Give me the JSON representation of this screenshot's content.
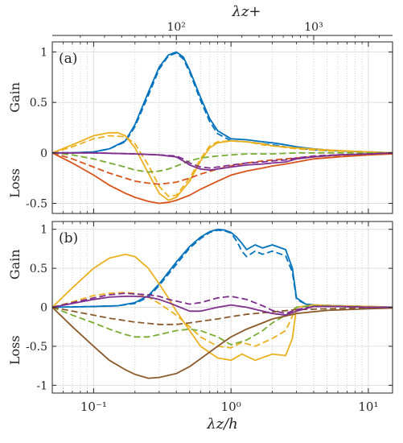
{
  "chart_data": [
    {
      "type": "line",
      "panel_label": "(a)",
      "xscale": "log",
      "xlim": [
        0.05,
        15
      ],
      "ylim": [
        -0.6,
        1.1
      ],
      "yticks": [
        -0.5,
        0,
        0.5,
        1
      ],
      "ytick_labels": [
        "-0.5",
        "0",
        "0.5",
        "1"
      ],
      "ylabel_top": "Gain",
      "ylabel_bottom": "Loss",
      "top_axis": {
        "label": "λz+",
        "tick_labels": [
          "10²",
          "10³"
        ],
        "tick_values_xunits": [
          0.4,
          4.0
        ]
      },
      "grid": true,
      "series": [
        {
          "color": "#0072BD",
          "style": "solid",
          "x": [
            0.05,
            0.07,
            0.1,
            0.13,
            0.17,
            0.2,
            0.25,
            0.3,
            0.35,
            0.4,
            0.45,
            0.5,
            0.6,
            0.7,
            0.8,
            1.0,
            1.3,
            1.7,
            2.0,
            2.5,
            3.0,
            4,
            6,
            10,
            15
          ],
          "y": [
            0,
            0,
            0.01,
            0.04,
            0.12,
            0.28,
            0.6,
            0.85,
            0.97,
            1.0,
            0.95,
            0.82,
            0.55,
            0.34,
            0.22,
            0.14,
            0.13,
            0.11,
            0.1,
            0.08,
            0.06,
            0.04,
            0.02,
            0.01,
            0.0
          ]
        },
        {
          "color": "#0072BD",
          "style": "dashed",
          "x": [
            0.05,
            0.07,
            0.1,
            0.13,
            0.17,
            0.2,
            0.25,
            0.3,
            0.35,
            0.4,
            0.45,
            0.5,
            0.6,
            0.7,
            0.8,
            1.0,
            1.3,
            1.7,
            2.0,
            2.5,
            3.0,
            4,
            6,
            10,
            15
          ],
          "y": [
            0,
            0,
            0.01,
            0.04,
            0.11,
            0.26,
            0.57,
            0.83,
            0.96,
            0.99,
            0.93,
            0.8,
            0.52,
            0.31,
            0.19,
            0.12,
            0.11,
            0.09,
            0.08,
            0.06,
            0.05,
            0.03,
            0.02,
            0.01,
            0.0
          ]
        },
        {
          "color": "#EDB120",
          "style": "solid",
          "x": [
            0.05,
            0.07,
            0.1,
            0.13,
            0.15,
            0.17,
            0.2,
            0.25,
            0.3,
            0.35,
            0.4,
            0.5,
            0.6,
            0.7,
            0.8,
            1.0,
            1.3,
            1.7,
            2.0,
            3.0,
            5.0,
            10,
            15
          ],
          "y": [
            0,
            0.08,
            0.17,
            0.2,
            0.2,
            0.17,
            0.05,
            -0.2,
            -0.4,
            -0.47,
            -0.44,
            -0.28,
            -0.08,
            0.05,
            0.1,
            0.12,
            0.11,
            0.09,
            0.07,
            0.05,
            0.03,
            0.01,
            0.0
          ]
        },
        {
          "color": "#EDB120",
          "style": "dashed",
          "x": [
            0.05,
            0.07,
            0.1,
            0.13,
            0.17,
            0.2,
            0.25,
            0.3,
            0.35,
            0.4,
            0.5,
            0.6,
            0.7,
            0.8,
            1.0,
            1.3,
            1.7,
            2.0,
            3.0,
            5.0,
            10,
            15
          ],
          "y": [
            0,
            0.06,
            0.14,
            0.17,
            0.16,
            0.09,
            -0.12,
            -0.33,
            -0.43,
            -0.42,
            -0.25,
            -0.06,
            0.07,
            0.11,
            0.12,
            0.11,
            0.08,
            0.07,
            0.04,
            0.02,
            0.01,
            0.0
          ]
        },
        {
          "color": "#D95319",
          "style": "solid",
          "x": [
            0.05,
            0.07,
            0.1,
            0.13,
            0.17,
            0.2,
            0.25,
            0.3,
            0.35,
            0.4,
            0.5,
            0.6,
            0.8,
            1.0,
            1.3,
            1.7,
            2.0,
            2.5,
            3.0,
            4.0,
            6,
            10,
            15
          ],
          "y": [
            0,
            -0.1,
            -0.22,
            -0.32,
            -0.4,
            -0.44,
            -0.48,
            -0.5,
            -0.49,
            -0.47,
            -0.42,
            -0.36,
            -0.28,
            -0.22,
            -0.18,
            -0.15,
            -0.13,
            -0.11,
            -0.09,
            -0.06,
            -0.04,
            -0.02,
            -0.01
          ]
        },
        {
          "color": "#D95319",
          "style": "dashed",
          "x": [
            0.05,
            0.07,
            0.1,
            0.13,
            0.17,
            0.2,
            0.25,
            0.3,
            0.35,
            0.4,
            0.5,
            0.6,
            0.8,
            1.0,
            1.3,
            1.7,
            2.0,
            3.0,
            5,
            10,
            15
          ],
          "y": [
            0,
            -0.06,
            -0.14,
            -0.2,
            -0.25,
            -0.28,
            -0.3,
            -0.31,
            -0.3,
            -0.29,
            -0.25,
            -0.21,
            -0.16,
            -0.13,
            -0.1,
            -0.08,
            -0.07,
            -0.05,
            -0.03,
            -0.01,
            -0.01
          ]
        },
        {
          "color": "#77AC30",
          "style": "dashed",
          "x": [
            0.05,
            0.07,
            0.1,
            0.13,
            0.17,
            0.2,
            0.25,
            0.3,
            0.35,
            0.4,
            0.5,
            0.6,
            0.8,
            1.0,
            1.3,
            2.0,
            3.0,
            5,
            10,
            15
          ],
          "y": [
            0,
            -0.02,
            -0.06,
            -0.1,
            -0.14,
            -0.17,
            -0.19,
            -0.18,
            -0.16,
            -0.13,
            -0.08,
            -0.05,
            -0.03,
            -0.02,
            -0.01,
            -0.01,
            0,
            0,
            0,
            0
          ]
        },
        {
          "color": "#7E2F8E",
          "style": "solid",
          "x": [
            0.05,
            0.1,
            0.2,
            0.3,
            0.4,
            0.45,
            0.5,
            0.6,
            0.7,
            0.8,
            1.0,
            1.3,
            1.7,
            2.0,
            2.5,
            3.0,
            4.0,
            6,
            10,
            15
          ],
          "y": [
            0,
            0,
            -0.01,
            -0.02,
            -0.04,
            -0.08,
            -0.12,
            -0.16,
            -0.17,
            -0.16,
            -0.14,
            -0.12,
            -0.11,
            -0.1,
            -0.09,
            -0.06,
            -0.04,
            -0.02,
            -0.01,
            0
          ]
        },
        {
          "color": "#7E2F8E",
          "style": "dashed",
          "x": [
            0.05,
            0.1,
            0.2,
            0.3,
            0.4,
            0.45,
            0.5,
            0.6,
            0.7,
            0.8,
            1.0,
            1.3,
            1.7,
            2.0,
            2.5,
            3.0,
            4.0,
            6,
            10,
            15
          ],
          "y": [
            0,
            0,
            -0.01,
            -0.02,
            -0.03,
            -0.06,
            -0.1,
            -0.14,
            -0.15,
            -0.14,
            -0.12,
            -0.1,
            -0.09,
            -0.08,
            -0.07,
            -0.05,
            -0.03,
            -0.02,
            -0.01,
            0
          ]
        }
      ]
    },
    {
      "type": "line",
      "panel_label": "(b)",
      "xscale": "log",
      "xlim": [
        0.05,
        15
      ],
      "ylim": [
        -1.1,
        1.1
      ],
      "yticks": [
        -1,
        -0.5,
        0,
        0.5,
        1
      ],
      "ytick_labels": [
        "-1",
        "-0.5",
        "0",
        "0.5",
        "1"
      ],
      "ylabel_top": "Gain",
      "ylabel_bottom": "Loss",
      "xlabel": "λz/h",
      "xticks": [
        0.1,
        1,
        10
      ],
      "xtick_labels": [
        "10⁻¹",
        "10⁰",
        "10¹"
      ],
      "grid": true,
      "series": [
        {
          "color": "#0072BD",
          "style": "solid",
          "x": [
            0.05,
            0.1,
            0.15,
            0.2,
            0.25,
            0.3,
            0.4,
            0.5,
            0.6,
            0.7,
            0.8,
            0.9,
            1.0,
            1.1,
            1.2,
            1.3,
            1.5,
            1.7,
            2.0,
            2.5,
            2.8,
            3.0,
            3.5,
            4,
            6,
            10,
            15
          ],
          "y": [
            0,
            0.01,
            0.02,
            0.06,
            0.15,
            0.3,
            0.58,
            0.78,
            0.9,
            0.97,
            1.0,
            0.99,
            0.96,
            0.9,
            0.82,
            0.74,
            0.8,
            0.76,
            0.8,
            0.74,
            0.5,
            0.12,
            0.04,
            0.03,
            0.02,
            0.01,
            0.0
          ]
        },
        {
          "color": "#0072BD",
          "style": "dashed",
          "x": [
            0.05,
            0.1,
            0.15,
            0.2,
            0.25,
            0.3,
            0.4,
            0.5,
            0.6,
            0.7,
            0.8,
            0.9,
            1.0,
            1.1,
            1.2,
            1.3,
            1.5,
            1.7,
            2.0,
            2.5,
            2.8,
            3.0,
            3.5,
            4,
            6,
            10,
            15
          ],
          "y": [
            0,
            0.01,
            0.02,
            0.05,
            0.13,
            0.28,
            0.55,
            0.76,
            0.88,
            0.96,
            0.99,
            0.98,
            0.95,
            0.85,
            0.72,
            0.65,
            0.72,
            0.68,
            0.72,
            0.66,
            0.45,
            0.1,
            0.04,
            0.03,
            0.02,
            0.01,
            0.0
          ]
        },
        {
          "color": "#EDB120",
          "style": "solid",
          "x": [
            0.05,
            0.07,
            0.1,
            0.13,
            0.17,
            0.2,
            0.25,
            0.3,
            0.35,
            0.4,
            0.5,
            0.6,
            0.8,
            1.0,
            1.2,
            1.5,
            2.0,
            2.5,
            2.8,
            3.0,
            4,
            6,
            10,
            15
          ],
          "y": [
            0,
            0.25,
            0.5,
            0.63,
            0.68,
            0.65,
            0.5,
            0.3,
            0.12,
            -0.05,
            -0.3,
            -0.5,
            -0.65,
            -0.68,
            -0.6,
            -0.68,
            -0.6,
            -0.62,
            -0.4,
            0.0,
            0.03,
            0.02,
            0.01,
            0.0
          ]
        },
        {
          "color": "#EDB120",
          "style": "dashed",
          "x": [
            0.05,
            0.07,
            0.1,
            0.13,
            0.17,
            0.2,
            0.25,
            0.3,
            0.4,
            0.5,
            0.6,
            0.8,
            1.0,
            1.2,
            1.5,
            2.0,
            2.5,
            3.0,
            4,
            6,
            10,
            15
          ],
          "y": [
            0,
            0.07,
            0.15,
            0.18,
            0.19,
            0.18,
            0.13,
            0.05,
            -0.1,
            -0.25,
            -0.38,
            -0.5,
            -0.52,
            -0.45,
            -0.5,
            -0.4,
            -0.3,
            0.0,
            0.02,
            0.01,
            0.0,
            0.0
          ]
        },
        {
          "color": "#77AC30",
          "style": "dashed",
          "x": [
            0.05,
            0.07,
            0.1,
            0.13,
            0.17,
            0.2,
            0.25,
            0.3,
            0.4,
            0.5,
            0.6,
            0.8,
            1.0,
            1.3,
            1.7,
            2.0,
            2.5,
            3.0,
            4,
            6,
            10,
            15
          ],
          "y": [
            0,
            -0.1,
            -0.2,
            -0.28,
            -0.35,
            -0.38,
            -0.38,
            -0.35,
            -0.3,
            -0.28,
            -0.3,
            -0.38,
            -0.48,
            -0.42,
            -0.3,
            -0.2,
            -0.1,
            0.0,
            0.02,
            0.01,
            0.0,
            0.0
          ]
        },
        {
          "color": "#8B5A2B",
          "style": "solid",
          "x": [
            0.05,
            0.07,
            0.1,
            0.13,
            0.17,
            0.2,
            0.25,
            0.3,
            0.4,
            0.5,
            0.6,
            0.8,
            1.0,
            1.3,
            1.7,
            2.0,
            3.0,
            5,
            10,
            15
          ],
          "y": [
            0,
            -0.25,
            -0.5,
            -0.68,
            -0.8,
            -0.86,
            -0.91,
            -0.9,
            -0.85,
            -0.76,
            -0.66,
            -0.5,
            -0.38,
            -0.28,
            -0.2,
            -0.15,
            -0.08,
            -0.04,
            -0.02,
            -0.01
          ]
        },
        {
          "color": "#8B5A2B",
          "style": "dashed",
          "x": [
            0.05,
            0.07,
            0.1,
            0.13,
            0.17,
            0.2,
            0.3,
            0.4,
            0.5,
            0.6,
            0.8,
            1.0,
            1.3,
            1.7,
            2.0,
            3.0,
            5,
            10,
            15
          ],
          "y": [
            0,
            -0.05,
            -0.1,
            -0.14,
            -0.17,
            -0.19,
            -0.22,
            -0.22,
            -0.2,
            -0.18,
            -0.15,
            -0.12,
            -0.09,
            -0.07,
            -0.06,
            -0.03,
            -0.02,
            -0.01,
            0
          ]
        },
        {
          "color": "#7E2F8E",
          "style": "solid",
          "x": [
            0.05,
            0.07,
            0.1,
            0.13,
            0.17,
            0.2,
            0.25,
            0.3,
            0.35,
            0.4,
            0.5,
            0.6,
            0.8,
            1.0,
            1.3,
            1.7,
            2.0,
            2.5,
            3.0,
            4,
            6,
            10,
            15
          ],
          "y": [
            0,
            0.05,
            0.1,
            0.13,
            0.14,
            0.14,
            0.13,
            0.1,
            0.06,
            0.02,
            -0.05,
            -0.05,
            0.0,
            0.03,
            0.0,
            -0.05,
            -0.08,
            -0.1,
            -0.05,
            0.01,
            0.01,
            0.0,
            0.0
          ]
        },
        {
          "color": "#7E2F8E",
          "style": "dashed",
          "x": [
            0.05,
            0.07,
            0.1,
            0.13,
            0.17,
            0.2,
            0.25,
            0.3,
            0.35,
            0.4,
            0.5,
            0.6,
            0.8,
            1.0,
            1.3,
            1.7,
            2.0,
            2.5,
            3.0,
            4,
            6,
            10,
            15
          ],
          "y": [
            0,
            0.06,
            0.12,
            0.16,
            0.18,
            0.17,
            0.16,
            0.14,
            0.1,
            0.08,
            0.04,
            0.06,
            0.12,
            0.14,
            0.1,
            0.02,
            -0.04,
            -0.08,
            -0.03,
            0.01,
            0.01,
            0.0,
            0.0
          ]
        }
      ]
    }
  ]
}
